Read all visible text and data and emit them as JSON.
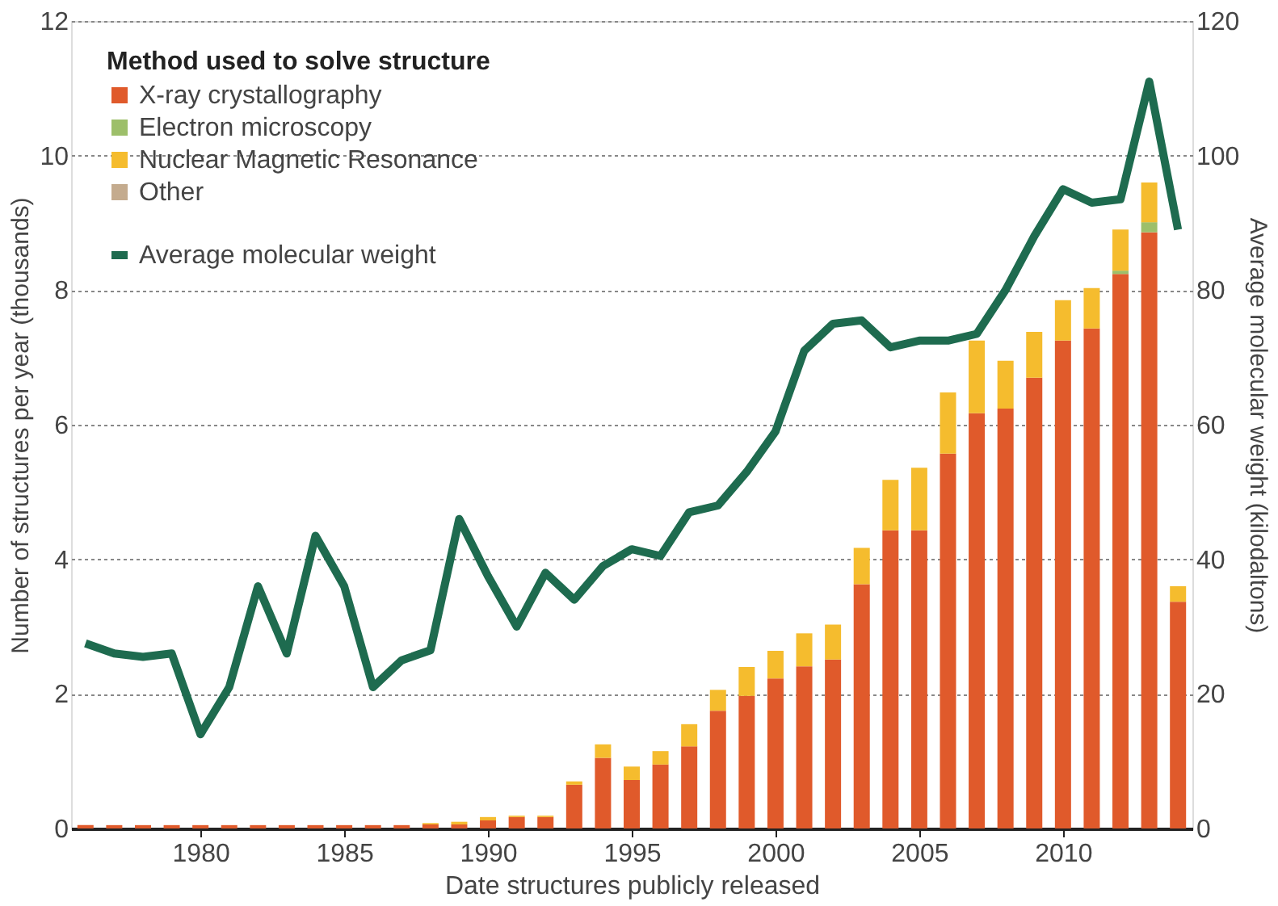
{
  "chart_data": {
    "type": "bar",
    "stacked": true,
    "xlabel": "Date structures publicly released",
    "ylabel": "Number of structures per year (thousands)",
    "y2label": "Average molecular weight (kilodaltons)",
    "legend_title": "Method used to solve structure",
    "x": [
      1976,
      1977,
      1978,
      1979,
      1980,
      1981,
      1982,
      1983,
      1984,
      1985,
      1986,
      1987,
      1988,
      1989,
      1990,
      1991,
      1992,
      1993,
      1994,
      1995,
      1996,
      1997,
      1998,
      1999,
      2000,
      2001,
      2002,
      2003,
      2004,
      2005,
      2006,
      2007,
      2008,
      2009,
      2010,
      2011,
      2012,
      2013,
      2014
    ],
    "xlim": [
      1975.5,
      2014.5
    ],
    "xticks": [
      1980,
      1985,
      1990,
      1995,
      2000,
      2005,
      2010
    ],
    "ylim": [
      0,
      12
    ],
    "yticks": [
      0,
      2,
      4,
      6,
      8,
      10,
      12
    ],
    "y2lim": [
      0,
      120
    ],
    "y2ticks": [
      0,
      20,
      40,
      60,
      80,
      100,
      120
    ],
    "grid": "y",
    "legend": "top left",
    "series": [
      {
        "name": "X-ray crystallography",
        "color": "#e05a2b",
        "values": [
          0.05,
          0.05,
          0.05,
          0.05,
          0.05,
          0.05,
          0.05,
          0.05,
          0.05,
          0.05,
          0.05,
          0.05,
          0.06,
          0.06,
          0.12,
          0.17,
          0.17,
          0.65,
          1.05,
          0.72,
          0.95,
          1.22,
          1.75,
          1.97,
          2.23,
          2.41,
          2.51,
          3.63,
          4.43,
          4.43,
          5.57,
          6.17,
          6.24,
          6.7,
          7.25,
          7.43,
          8.24,
          8.86,
          3.37
        ]
      },
      {
        "name": "Electron microscopy",
        "color": "#9dbf6a",
        "values": [
          0,
          0,
          0,
          0,
          0,
          0,
          0,
          0,
          0,
          0,
          0,
          0,
          0,
          0,
          0,
          0,
          0,
          0,
          0,
          0,
          0,
          0,
          0,
          0,
          0,
          0,
          0,
          0,
          0,
          0,
          0,
          0,
          0,
          0,
          0,
          0,
          0.05,
          0.15,
          0
        ]
      },
      {
        "name": "Nuclear Magnetic Resonance",
        "color": "#f5bc2e",
        "values": [
          0,
          0,
          0,
          0,
          0,
          0,
          0,
          0,
          0,
          0,
          0,
          0,
          0.02,
          0.04,
          0.05,
          0.02,
          0.02,
          0.05,
          0.2,
          0.2,
          0.2,
          0.33,
          0.31,
          0.43,
          0.41,
          0.49,
          0.52,
          0.54,
          0.75,
          0.93,
          0.91,
          1.08,
          0.71,
          0.68,
          0.6,
          0.6,
          0.61,
          0.59,
          0.23
        ]
      },
      {
        "name": "Other",
        "color": "#c4ab8e",
        "values": [
          0,
          0,
          0,
          0,
          0,
          0,
          0,
          0,
          0,
          0,
          0,
          0,
          0,
          0,
          0,
          0,
          0,
          0,
          0,
          0,
          0,
          0,
          0,
          0,
          0,
          0,
          0,
          0,
          0,
          0,
          0,
          0,
          0,
          0,
          0,
          0,
          0,
          0,
          0
        ]
      },
      {
        "name": "Average molecular weight",
        "type": "line",
        "axis": "y2",
        "color": "#1e6b4f",
        "values": [
          27.5,
          26,
          25.5,
          26,
          14,
          21,
          36,
          26,
          43.5,
          36,
          21,
          25,
          26.5,
          46,
          37.5,
          30,
          38,
          34,
          39,
          41.5,
          40.5,
          47,
          48,
          53,
          59,
          71,
          75,
          75.5,
          71.5,
          72.5,
          72.5,
          73.5,
          80,
          88,
          95,
          93,
          93.5,
          111,
          89
        ]
      }
    ]
  }
}
